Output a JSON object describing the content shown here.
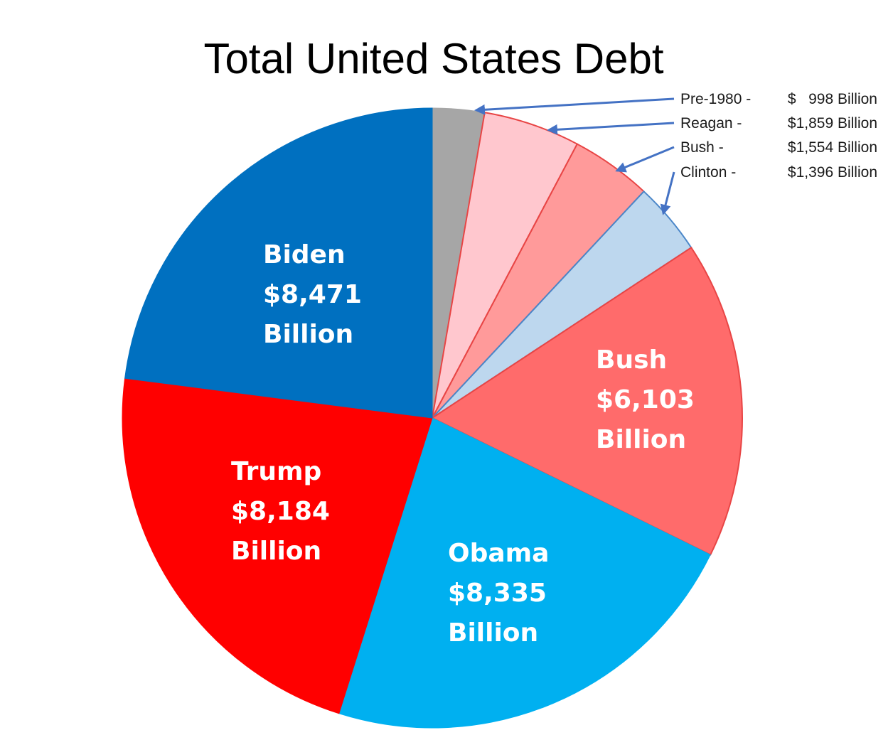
{
  "chart_data": {
    "type": "pie",
    "title": "Total United States Debt",
    "unit": "Billion",
    "slices": [
      {
        "name": "Pre-1980",
        "value": 998,
        "color": "#a6a6a6",
        "label_style": "callout",
        "callout": {
          "name": "Pre-1980 -",
          "amount": "$   998 Billion"
        }
      },
      {
        "name": "Reagan",
        "value": 1859,
        "color": "#ffc7ce",
        "stroke": "#e84545",
        "label_style": "callout",
        "callout": {
          "name": "Reagan -",
          "amount": "$1,859 Billion"
        }
      },
      {
        "name": "Bush",
        "value": 1554,
        "color": "#ff9a9a",
        "stroke": "#e84545",
        "label_style": "callout",
        "callout": {
          "name": "Bush -",
          "amount": "$1,554 Billion"
        }
      },
      {
        "name": "Clinton",
        "value": 1396,
        "color": "#bdd7ee",
        "stroke": "#4a86c8",
        "label_style": "callout",
        "callout": {
          "name": "Clinton -",
          "amount": "$1,396 Billion"
        }
      },
      {
        "name": "Bush",
        "value": 6103,
        "color": "#ff6b6b",
        "stroke": "#e84545",
        "label_style": "inside",
        "label_lines": [
          "Bush",
          "$6,103",
          "Billion"
        ]
      },
      {
        "name": "Obama",
        "value": 8335,
        "color": "#00b0f0",
        "label_style": "inside",
        "label_lines": [
          "Obama",
          "$8,335",
          "Billion"
        ]
      },
      {
        "name": "Trump",
        "value": 8184,
        "color": "#ff0000",
        "label_style": "inside",
        "label_lines": [
          "Trump",
          "$8,184",
          "Billion"
        ]
      },
      {
        "name": "Biden",
        "value": 8471,
        "color": "#0070c0",
        "label_style": "inside",
        "label_lines": [
          "Biden",
          "$8,471",
          "Billion"
        ]
      }
    ],
    "start_angle": "12 o'clock",
    "direction": "clockwise",
    "callout_arrow_color": "#4472c4"
  }
}
